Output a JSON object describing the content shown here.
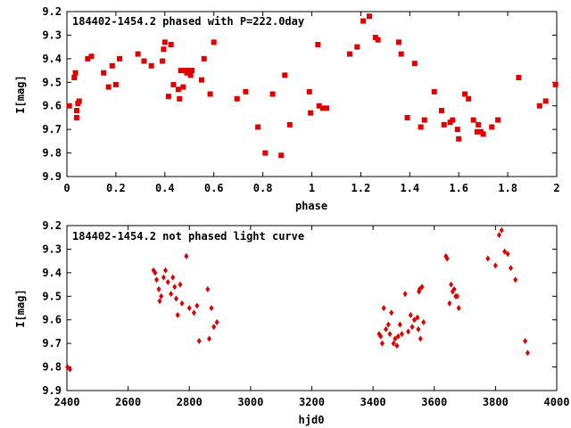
{
  "chart_data": [
    {
      "type": "scatter",
      "title": "184402-1454.2 phased with P=222.0day",
      "xlabel": "phase",
      "ylabel": "I[mag]",
      "xlim": [
        0,
        2
      ],
      "ylim": [
        9.9,
        9.2
      ],
      "y_inverted": true,
      "grid": false,
      "legend": "none",
      "marker": "filled square",
      "color": "#e00000",
      "x_ticks": [
        "0",
        "0.2",
        "0.4",
        "0.6",
        "0.8",
        "1",
        "1.2",
        "1.4",
        "1.6",
        "1.8",
        "2"
      ],
      "y_ticks": [
        "9.2",
        "9.3",
        "9.4",
        "9.5",
        "9.6",
        "9.7",
        "9.8",
        "9.9"
      ],
      "points": [
        [
          0.01,
          9.6
        ],
        [
          0.03,
          9.48
        ],
        [
          0.035,
          9.46
        ],
        [
          0.04,
          9.62
        ],
        [
          0.04,
          9.65
        ],
        [
          0.045,
          9.59
        ],
        [
          0.05,
          9.58
        ],
        [
          0.085,
          9.4
        ],
        [
          0.1,
          9.39
        ],
        [
          0.15,
          9.46
        ],
        [
          0.17,
          9.52
        ],
        [
          0.185,
          9.43
        ],
        [
          0.2,
          9.51
        ],
        [
          0.215,
          9.4
        ],
        [
          0.29,
          9.38
        ],
        [
          0.315,
          9.41
        ],
        [
          0.345,
          9.43
        ],
        [
          0.39,
          9.41
        ],
        [
          0.395,
          9.36
        ],
        [
          0.4,
          9.33
        ],
        [
          0.415,
          9.56
        ],
        [
          0.425,
          9.34
        ],
        [
          0.435,
          9.51
        ],
        [
          0.455,
          9.53
        ],
        [
          0.46,
          9.57
        ],
        [
          0.465,
          9.45
        ],
        [
          0.475,
          9.52
        ],
        [
          0.48,
          9.45
        ],
        [
          0.49,
          9.46
        ],
        [
          0.495,
          9.45
        ],
        [
          0.5,
          9.45
        ],
        [
          0.505,
          9.47
        ],
        [
          0.51,
          9.45
        ],
        [
          0.55,
          9.49
        ],
        [
          0.56,
          9.4
        ],
        [
          0.585,
          9.55
        ],
        [
          0.6,
          9.33
        ],
        [
          0.695,
          9.57
        ],
        [
          0.73,
          9.54
        ],
        [
          0.78,
          9.69
        ],
        [
          0.81,
          9.8
        ],
        [
          0.84,
          9.55
        ],
        [
          0.875,
          9.81
        ],
        [
          0.89,
          9.47
        ],
        [
          0.91,
          9.68
        ],
        [
          0.99,
          9.54
        ],
        [
          0.995,
          9.63
        ],
        [
          1.025,
          9.34
        ],
        [
          1.03,
          9.6
        ],
        [
          1.045,
          9.61
        ],
        [
          1.06,
          9.61
        ],
        [
          1.155,
          9.38
        ],
        [
          1.185,
          9.35
        ],
        [
          1.21,
          9.24
        ],
        [
          1.235,
          9.22
        ],
        [
          1.26,
          9.31
        ],
        [
          1.27,
          9.32
        ],
        [
          1.355,
          9.33
        ],
        [
          1.365,
          9.38
        ],
        [
          1.39,
          9.65
        ],
        [
          1.42,
          9.42
        ],
        [
          1.445,
          9.69
        ],
        [
          1.46,
          9.66
        ],
        [
          1.5,
          9.54
        ],
        [
          1.53,
          9.62
        ],
        [
          1.54,
          9.68
        ],
        [
          1.565,
          9.67
        ],
        [
          1.575,
          9.66
        ],
        [
          1.595,
          9.7
        ],
        [
          1.6,
          9.74
        ],
        [
          1.625,
          9.55
        ],
        [
          1.64,
          9.57
        ],
        [
          1.66,
          9.66
        ],
        [
          1.675,
          9.71
        ],
        [
          1.68,
          9.68
        ],
        [
          1.69,
          9.71
        ],
        [
          1.7,
          9.72
        ],
        [
          1.735,
          9.69
        ],
        [
          1.76,
          9.66
        ],
        [
          1.845,
          9.48
        ],
        [
          1.93,
          9.6
        ],
        [
          1.955,
          9.58
        ],
        [
          1.995,
          9.51
        ]
      ]
    },
    {
      "type": "scatter",
      "title": "184402-1454.2 not phased light curve",
      "xlabel": "hjd0",
      "ylabel": "I[mag]",
      "xlim": [
        2400,
        4000
      ],
      "ylim": [
        9.9,
        9.2
      ],
      "y_inverted": true,
      "grid": false,
      "legend": "none",
      "marker": "filled diamond",
      "color": "#e00000",
      "x_ticks": [
        "2400",
        "2600",
        "2800",
        "3000",
        "3200",
        "3400",
        "3600",
        "3800",
        "4000"
      ],
      "y_ticks": [
        "9.2",
        "9.3",
        "9.4",
        "9.5",
        "9.6",
        "9.7",
        "9.8",
        "9.9"
      ],
      "points": [
        [
          2402,
          9.8
        ],
        [
          2410,
          9.81
        ],
        [
          2683,
          9.39
        ],
        [
          2688,
          9.4
        ],
        [
          2693,
          9.43
        ],
        [
          2700,
          9.47
        ],
        [
          2703,
          9.52
        ],
        [
          2708,
          9.5
        ],
        [
          2716,
          9.42
        ],
        [
          2722,
          9.39
        ],
        [
          2730,
          9.44
        ],
        [
          2740,
          9.49
        ],
        [
          2746,
          9.42
        ],
        [
          2752,
          9.46
        ],
        [
          2757,
          9.51
        ],
        [
          2762,
          9.58
        ],
        [
          2770,
          9.45
        ],
        [
          2776,
          9.53
        ],
        [
          2790,
          9.33
        ],
        [
          2800,
          9.55
        ],
        [
          2815,
          9.57
        ],
        [
          2825,
          9.54
        ],
        [
          2832,
          9.69
        ],
        [
          2860,
          9.47
        ],
        [
          2865,
          9.68
        ],
        [
          2872,
          9.55
        ],
        [
          2880,
          9.63
        ],
        [
          2890,
          9.61
        ],
        [
          3420,
          9.66
        ],
        [
          3425,
          9.67
        ],
        [
          3430,
          9.7
        ],
        [
          3435,
          9.55
        ],
        [
          3442,
          9.64
        ],
        [
          3450,
          9.62
        ],
        [
          3455,
          9.66
        ],
        [
          3460,
          9.57
        ],
        [
          3467,
          9.7
        ],
        [
          3472,
          9.68
        ],
        [
          3478,
          9.71
        ],
        [
          3482,
          9.67
        ],
        [
          3488,
          9.62
        ],
        [
          3494,
          9.66
        ],
        [
          3505,
          9.49
        ],
        [
          3515,
          9.65
        ],
        [
          3523,
          9.58
        ],
        [
          3528,
          9.63
        ],
        [
          3535,
          9.6
        ],
        [
          3545,
          9.59
        ],
        [
          3548,
          9.64
        ],
        [
          3550,
          9.48
        ],
        [
          3552,
          9.47
        ],
        [
          3555,
          9.68
        ],
        [
          3560,
          9.46
        ],
        [
          3565,
          9.61
        ],
        [
          3638,
          9.33
        ],
        [
          3642,
          9.34
        ],
        [
          3650,
          9.53
        ],
        [
          3655,
          9.45
        ],
        [
          3660,
          9.48
        ],
        [
          3665,
          9.47
        ],
        [
          3670,
          9.5
        ],
        [
          3675,
          9.5
        ],
        [
          3680,
          9.55
        ],
        [
          3775,
          9.34
        ],
        [
          3800,
          9.37
        ],
        [
          3812,
          9.24
        ],
        [
          3820,
          9.22
        ],
        [
          3830,
          9.31
        ],
        [
          3840,
          9.32
        ],
        [
          3850,
          9.38
        ],
        [
          3865,
          9.43
        ],
        [
          3897,
          9.69
        ],
        [
          3905,
          9.74
        ]
      ]
    }
  ]
}
